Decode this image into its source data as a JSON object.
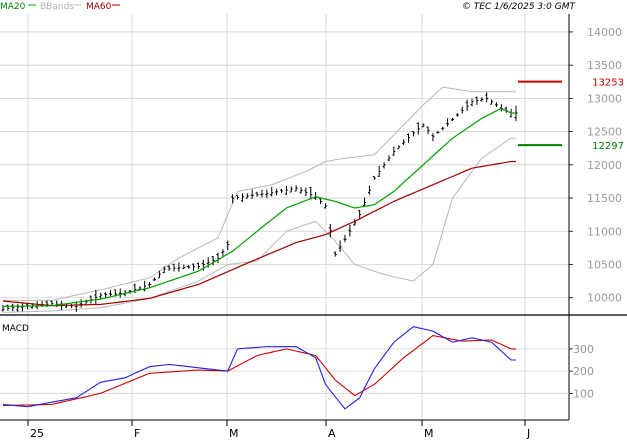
{
  "legend": {
    "ma20": "MA20",
    "bbands": "BBands",
    "ma60": "MA60"
  },
  "copyright": "© TEC 1/6/2025 3:0 GMT",
  "macd_label": "MACD",
  "colors": {
    "ma20": "#00a000",
    "bbands": "#b8b8b8",
    "ma60": "#a00000",
    "price": "#000000",
    "macd": "#2020e0",
    "signal": "#d00000",
    "grid": "#d0d0d0"
  },
  "chart_data": [
    {
      "type": "line",
      "panel": "price",
      "x_labels": [
        "25",
        "F",
        "M",
        "A",
        "M",
        "J"
      ],
      "y_ticks": [
        10000,
        10500,
        11000,
        11500,
        12000,
        12500,
        13000,
        13500,
        14000
      ],
      "y_tick_labels": [
        "10000",
        "10500",
        "11000",
        "11500",
        "12000",
        "12500",
        "13000",
        "13500",
        "14000"
      ],
      "ylim": [
        9740,
        14270
      ],
      "x_count": 106,
      "markers": [
        {
          "label": "13253",
          "value": 13253,
          "color": "#c00000"
        },
        {
          "label": "12297",
          "value": 12297,
          "color": "#008000"
        }
      ],
      "bars_path_data": "anchors",
      "price_anchors": [
        [
          0,
          9830
        ],
        [
          5,
          9880
        ],
        [
          10,
          9910
        ],
        [
          15,
          9870
        ],
        [
          20,
          10040
        ],
        [
          25,
          10070
        ],
        [
          30,
          10200
        ],
        [
          33,
          10430
        ],
        [
          36,
          10450
        ],
        [
          40,
          10470
        ],
        [
          44,
          10590
        ],
        [
          46,
          10800
        ],
        [
          47,
          11500
        ],
        [
          50,
          11530
        ],
        [
          55,
          11580
        ],
        [
          60,
          11650
        ],
        [
          64,
          11520
        ],
        [
          66,
          11380
        ],
        [
          68,
          10650
        ],
        [
          70,
          10880
        ],
        [
          73,
          11250
        ],
        [
          76,
          11800
        ],
        [
          80,
          12200
        ],
        [
          84,
          12480
        ],
        [
          86,
          12600
        ],
        [
          88,
          12430
        ],
        [
          90,
          12550
        ],
        [
          93,
          12750
        ],
        [
          96,
          12950
        ],
        [
          99,
          13000
        ],
        [
          102,
          12850
        ],
        [
          104,
          12780
        ]
      ],
      "series": [
        {
          "name": "MA20",
          "values_anchors": [
            [
              0,
              9870
            ],
            [
              10,
              9880
            ],
            [
              20,
              9980
            ],
            [
              30,
              10150
            ],
            [
              40,
              10400
            ],
            [
              47,
              10700
            ],
            [
              52,
              11000
            ],
            [
              58,
              11350
            ],
            [
              64,
              11520
            ],
            [
              68,
              11450
            ],
            [
              72,
              11350
            ],
            [
              76,
              11400
            ],
            [
              80,
              11600
            ],
            [
              86,
              12000
            ],
            [
              92,
              12400
            ],
            [
              98,
              12700
            ],
            [
              102,
              12850
            ],
            [
              104,
              12780
            ]
          ]
        },
        {
          "name": "MA60",
          "values_anchors": [
            [
              0,
              9950
            ],
            [
              10,
              9880
            ],
            [
              20,
              9900
            ],
            [
              30,
              9990
            ],
            [
              40,
              10200
            ],
            [
              50,
              10520
            ],
            [
              60,
              10830
            ],
            [
              66,
              10950
            ],
            [
              72,
              11150
            ],
            [
              80,
              11450
            ],
            [
              88,
              11700
            ],
            [
              96,
              11950
            ],
            [
              104,
              12050
            ]
          ]
        },
        {
          "name": "BBands upper",
          "values_anchors": [
            [
              0,
              9960
            ],
            [
              10,
              9960
            ],
            [
              20,
              10120
            ],
            [
              30,
              10300
            ],
            [
              36,
              10600
            ],
            [
              44,
              10900
            ],
            [
              48,
              11600
            ],
            [
              55,
              11700
            ],
            [
              62,
              11900
            ],
            [
              66,
              12050
            ],
            [
              70,
              12100
            ],
            [
              76,
              12150
            ],
            [
              80,
              12450
            ],
            [
              86,
              12900
            ],
            [
              90,
              13170
            ],
            [
              96,
              13100
            ],
            [
              104,
              13100
            ]
          ]
        },
        {
          "name": "BBands lower",
          "values_anchors": [
            [
              0,
              9780
            ],
            [
              10,
              9800
            ],
            [
              20,
              9850
            ],
            [
              30,
              9990
            ],
            [
              40,
              10250
            ],
            [
              46,
              10500
            ],
            [
              52,
              10550
            ],
            [
              58,
              11000
            ],
            [
              64,
              11150
            ],
            [
              68,
              10850
            ],
            [
              72,
              10500
            ],
            [
              78,
              10350
            ],
            [
              84,
              10250
            ],
            [
              88,
              10500
            ],
            [
              92,
              11500
            ],
            [
              98,
              12100
            ],
            [
              104,
              12400
            ]
          ]
        }
      ]
    },
    {
      "type": "line",
      "panel": "macd",
      "title": "MACD",
      "y_ticks": [
        100,
        200,
        300
      ],
      "y_tick_labels": [
        "100",
        "200",
        "300"
      ],
      "ylim": [
        -20,
        430
      ],
      "series": [
        {
          "name": "MACD",
          "values_anchors": [
            [
              0,
              50
            ],
            [
              5,
              40
            ],
            [
              10,
              60
            ],
            [
              15,
              80
            ],
            [
              20,
              150
            ],
            [
              25,
              170
            ],
            [
              30,
              220
            ],
            [
              34,
              230
            ],
            [
              40,
              215
            ],
            [
              46,
              200
            ],
            [
              48,
              300
            ],
            [
              54,
              310
            ],
            [
              60,
              310
            ],
            [
              64,
              260
            ],
            [
              66,
              140
            ],
            [
              70,
              30
            ],
            [
              73,
              80
            ],
            [
              76,
              210
            ],
            [
              80,
              330
            ],
            [
              84,
              400
            ],
            [
              88,
              380
            ],
            [
              92,
              330
            ],
            [
              96,
              350
            ],
            [
              100,
              330
            ],
            [
              104,
              250
            ]
          ]
        },
        {
          "name": "Signal",
          "values_anchors": [
            [
              0,
              45
            ],
            [
              10,
              50
            ],
            [
              20,
              100
            ],
            [
              30,
              190
            ],
            [
              40,
              205
            ],
            [
              46,
              200
            ],
            [
              52,
              270
            ],
            [
              58,
              300
            ],
            [
              64,
              270
            ],
            [
              68,
              160
            ],
            [
              72,
              90
            ],
            [
              76,
              140
            ],
            [
              82,
              260
            ],
            [
              88,
              360
            ],
            [
              94,
              335
            ],
            [
              100,
              340
            ],
            [
              104,
              300
            ]
          ]
        }
      ]
    }
  ]
}
